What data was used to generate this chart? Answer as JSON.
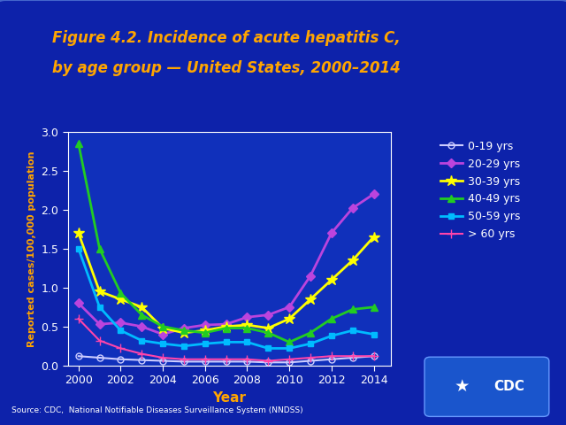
{
  "title_line1": "Figure 4.2. Incidence of acute hepatitis C,",
  "title_line2": "by age group — United States, 2000–2014",
  "xlabel": "Year",
  "ylabel": "Reported cases/100,000 population",
  "bg_outer": "#0a2080",
  "bg_plot": "#0d1fa0",
  "title_color": "#FFA500",
  "axis_color": "#FFA500",
  "tick_color": "white",
  "source_text": "Source: CDC,  National Notifiable Diseases Surveillance System (NNDSS)",
  "years": [
    2000,
    2001,
    2002,
    2003,
    2004,
    2005,
    2006,
    2007,
    2008,
    2009,
    2010,
    2011,
    2012,
    2013,
    2014
  ],
  "series": [
    {
      "label": "0-19 yrs",
      "color": "#CCCCFF",
      "marker": "o",
      "markerfacecolor": "none",
      "markersize": 5,
      "linewidth": 1.5,
      "values": [
        0.12,
        0.1,
        0.08,
        0.07,
        0.06,
        0.05,
        0.05,
        0.05,
        0.05,
        0.04,
        0.04,
        0.06,
        0.08,
        0.1,
        0.12
      ]
    },
    {
      "label": "20-29 yrs",
      "color": "#BB44DD",
      "marker": "D",
      "markerfacecolor": "#BB44DD",
      "markersize": 5,
      "linewidth": 2,
      "values": [
        0.8,
        0.53,
        0.55,
        0.5,
        0.4,
        0.48,
        0.52,
        0.53,
        0.62,
        0.65,
        0.75,
        1.15,
        1.7,
        2.02,
        2.2
      ]
    },
    {
      "label": "30-39 yrs",
      "color": "#FFFF00",
      "marker": "*",
      "markerfacecolor": "#FFFF00",
      "markersize": 9,
      "linewidth": 2,
      "values": [
        1.7,
        0.95,
        0.85,
        0.75,
        0.48,
        0.42,
        0.45,
        0.5,
        0.52,
        0.48,
        0.6,
        0.85,
        1.1,
        1.35,
        1.65
      ]
    },
    {
      "label": "40-49 yrs",
      "color": "#22CC22",
      "marker": "^",
      "markerfacecolor": "#22CC22",
      "markersize": 6,
      "linewidth": 2,
      "values": [
        2.85,
        1.5,
        0.93,
        0.65,
        0.5,
        0.45,
        0.42,
        0.48,
        0.48,
        0.42,
        0.3,
        0.42,
        0.6,
        0.72,
        0.75
      ]
    },
    {
      "label": "50-59 yrs",
      "color": "#00BBFF",
      "marker": "s",
      "markerfacecolor": "#00BBFF",
      "markersize": 5,
      "linewidth": 2,
      "values": [
        1.5,
        0.75,
        0.45,
        0.32,
        0.28,
        0.25,
        0.28,
        0.3,
        0.3,
        0.22,
        0.22,
        0.28,
        0.38,
        0.45,
        0.4
      ]
    },
    {
      "label": "> 60 yrs",
      "color": "#FF44AA",
      "marker": "+",
      "markerfacecolor": "#FF44AA",
      "markersize": 7,
      "linewidth": 1.5,
      "values": [
        0.6,
        0.32,
        0.22,
        0.15,
        0.1,
        0.08,
        0.08,
        0.08,
        0.08,
        0.06,
        0.08,
        0.1,
        0.12,
        0.12,
        0.12
      ]
    }
  ],
  "ylim": [
    0,
    3.0
  ],
  "yticks": [
    0,
    0.5,
    1.0,
    1.5,
    2.0,
    2.5,
    3.0
  ],
  "xticks": [
    2000,
    2002,
    2004,
    2006,
    2008,
    2010,
    2012,
    2014
  ]
}
